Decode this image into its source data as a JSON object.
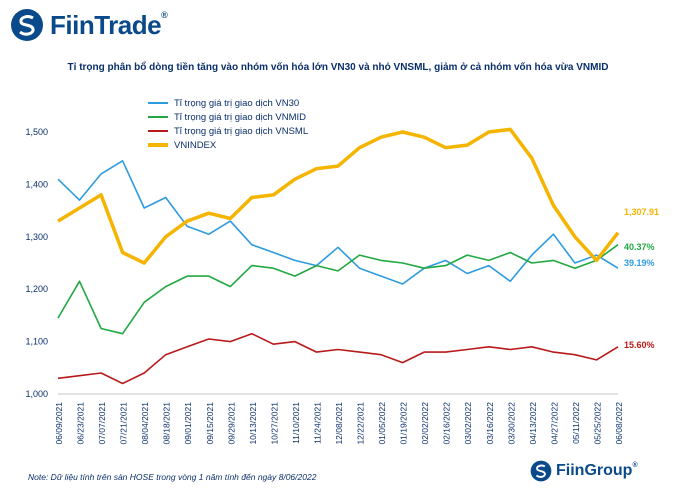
{
  "brand": {
    "top_name": "FiinTrade",
    "bottom_name": "FiinGroup",
    "registered": "®"
  },
  "chart_data": {
    "type": "line",
    "title": "Tỉ trọng phân bổ dòng tiền tăng vào nhóm vốn hóa lớn VN30 và nhỏ VNSML, giảm ở cả nhóm vốn hóa vừa VNMID",
    "ylim": [
      1000,
      1500
    ],
    "yticks": [
      "1,000",
      "1,100",
      "1,200",
      "1,300",
      "1,400",
      "1,500"
    ],
    "ytick_values": [
      1000,
      1100,
      1200,
      1300,
      1400,
      1500
    ],
    "categories": [
      "06/09/2021",
      "06/23/2021",
      "07/07/2021",
      "07/21/2021",
      "08/04/2021",
      "08/18/2021",
      "09/01/2021",
      "09/15/2021",
      "09/29/2021",
      "10/13/2021",
      "10/27/2021",
      "11/10/2021",
      "11/24/2021",
      "12/08/2021",
      "12/22/2021",
      "01/05/2022",
      "01/19/2022",
      "02/02/2022",
      "02/16/2022",
      "03/02/2022",
      "03/16/2022",
      "03/30/2022",
      "04/13/2022",
      "04/27/2022",
      "05/11/2022",
      "05/25/2022",
      "06/08/2022"
    ],
    "series": [
      {
        "name": "Tỉ trọng giá trị giao dịch VN30",
        "color": "#2e9be0",
        "end_label": "39.19%",
        "values": [
          1410,
          1370,
          1420,
          1445,
          1355,
          1375,
          1320,
          1305,
          1330,
          1285,
          1270,
          1255,
          1245,
          1280,
          1240,
          1225,
          1210,
          1240,
          1255,
          1230,
          1245,
          1215,
          1265,
          1305,
          1250,
          1265,
          1240
        ]
      },
      {
        "name": "Tỉ trọng giá trị giao dịch VNMID",
        "color": "#22a842",
        "end_label": "40.37%",
        "values": [
          1145,
          1215,
          1125,
          1115,
          1175,
          1205,
          1225,
          1225,
          1205,
          1245,
          1240,
          1225,
          1245,
          1235,
          1265,
          1255,
          1250,
          1240,
          1245,
          1265,
          1255,
          1270,
          1250,
          1255,
          1240,
          1255,
          1285
        ]
      },
      {
        "name": "Tỉ trọng giá trị giao dịch VNSML",
        "color": "#b81a1a",
        "end_label": "15.60%",
        "values": [
          1030,
          1035,
          1040,
          1020,
          1040,
          1075,
          1090,
          1105,
          1100,
          1115,
          1095,
          1100,
          1080,
          1085,
          1080,
          1075,
          1060,
          1080,
          1080,
          1085,
          1090,
          1085,
          1090,
          1080,
          1075,
          1065,
          1090
        ]
      },
      {
        "name": "VNINDEX",
        "color": "#f5b400",
        "end_label": "1,307.91",
        "values": [
          1330,
          1355,
          1380,
          1270,
          1250,
          1300,
          1330,
          1345,
          1335,
          1375,
          1380,
          1410,
          1430,
          1435,
          1470,
          1490,
          1500,
          1490,
          1470,
          1475,
          1500,
          1505,
          1450,
          1360,
          1300,
          1255,
          1307.91
        ]
      }
    ]
  },
  "note": "Note: Dữ liệu tính trên sàn HOSE trong vòng 1 năm  tính đến ngày 8/06/2022"
}
